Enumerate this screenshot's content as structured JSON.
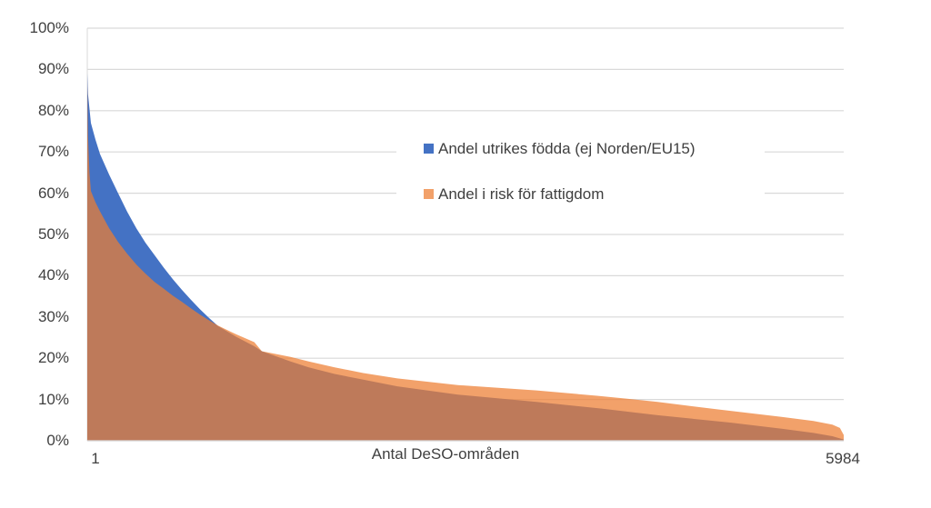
{
  "chart_data": {
    "type": "area",
    "title": "",
    "xlabel": "Antal DeSO-områden",
    "x_axis": {
      "first_tick": "1",
      "last_tick": "5984",
      "total_categories": 5984
    },
    "y_axis": {
      "ticks": [
        "0%",
        "10%",
        "20%",
        "30%",
        "40%",
        "50%",
        "60%",
        "70%",
        "80%",
        "90%",
        "100%"
      ],
      "min": 0,
      "max": 100,
      "unit": "percent",
      "grid": true,
      "gridline_color": "#D9D9D9"
    },
    "legend_position": "upper-center-right",
    "series": [
      {
        "name": "Andel utrikes födda (ej Norden/EU15)",
        "color": "#4472C4",
        "opacity": 1.0,
        "sorted": "descending",
        "points": [
          [
            1,
            89
          ],
          [
            7,
            84
          ],
          [
            30,
            77
          ],
          [
            66,
            73
          ],
          [
            102,
            69.5
          ],
          [
            174,
            64.5
          ],
          [
            245,
            60
          ],
          [
            317,
            55.5
          ],
          [
            389,
            51.5
          ],
          [
            461,
            48
          ],
          [
            533,
            45
          ],
          [
            604,
            42
          ],
          [
            676,
            39.2
          ],
          [
            748,
            36.6
          ],
          [
            820,
            34.2
          ],
          [
            892,
            31.9
          ],
          [
            963,
            29.8
          ],
          [
            1035,
            27.8
          ],
          [
            1179,
            25.2
          ],
          [
            1322,
            22.9
          ],
          [
            1382,
            21.7
          ],
          [
            1609,
            19.2
          ],
          [
            1753,
            17.8
          ],
          [
            1958,
            16.2
          ],
          [
            2184,
            14.8
          ],
          [
            2453,
            13.2
          ],
          [
            2932,
            11.2
          ],
          [
            3554,
            9.4
          ],
          [
            4069,
            7.8
          ],
          [
            4512,
            6.2
          ],
          [
            5086,
            4.4
          ],
          [
            5493,
            2.9
          ],
          [
            5745,
            1.9
          ],
          [
            5894,
            1.1
          ],
          [
            5984,
            0.3
          ]
        ]
      },
      {
        "name": "Andel i risk för fattigdom",
        "color": "#ED7D31",
        "opacity": 0.72,
        "sorted": "descending",
        "points": [
          [
            1,
            88
          ],
          [
            7,
            74
          ],
          [
            18,
            65
          ],
          [
            30,
            60.5
          ],
          [
            66,
            57.8
          ],
          [
            102,
            55.6
          ],
          [
            174,
            51.5
          ],
          [
            245,
            48.2
          ],
          [
            317,
            45.3
          ],
          [
            389,
            42.7
          ],
          [
            461,
            40.5
          ],
          [
            533,
            38.5
          ],
          [
            604,
            36.9
          ],
          [
            676,
            35.2
          ],
          [
            748,
            33.7
          ],
          [
            820,
            32.1
          ],
          [
            892,
            30.6
          ],
          [
            963,
            29.2
          ],
          [
            1035,
            27.9
          ],
          [
            1179,
            25.8
          ],
          [
            1322,
            23.9
          ],
          [
            1382,
            21.7
          ],
          [
            1609,
            20.3
          ],
          [
            1753,
            19.2
          ],
          [
            1958,
            17.8
          ],
          [
            2184,
            16.4
          ],
          [
            2453,
            15.1
          ],
          [
            2932,
            13.5
          ],
          [
            3554,
            12.2
          ],
          [
            4033,
            10.9
          ],
          [
            4272,
            10.2
          ],
          [
            4512,
            9.4
          ],
          [
            4990,
            7.6
          ],
          [
            5493,
            5.8
          ],
          [
            5745,
            4.8
          ],
          [
            5894,
            3.9
          ],
          [
            5954,
            3.1
          ],
          [
            5984,
            1.4
          ]
        ]
      }
    ],
    "crossing_point": {
      "category_index": 1382,
      "value_pct": 21.7
    },
    "plot_colors": {
      "blue_area": "#4472C4",
      "orange_over_white": "#F2A16B",
      "overlap_brown": "#BA7A5D",
      "axis_line": "#D9D9D9",
      "text": "#404040"
    }
  }
}
